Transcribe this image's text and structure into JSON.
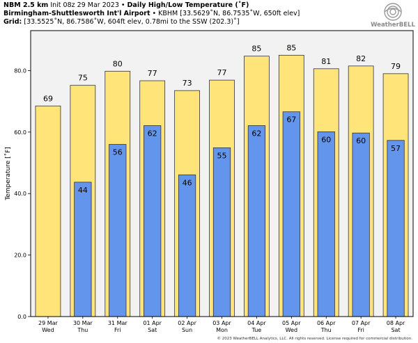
{
  "header": {
    "line1": {
      "model": "NBM 2.5 km",
      "init": "Init 08z 29 Mar 2023",
      "sep": "•",
      "title": "Daily High/Low Temperature (˚F)"
    },
    "line2": {
      "station": "Birmingham-Shuttlesworth Int'l Airport",
      "sep": "•",
      "detail": "KBHM [33.5629˚N, 86.7535˚W, 650ft elev]"
    },
    "line3": {
      "label": "Grid:",
      "detail": "[33.5525˚N, 86.7586˚W, 604ft elev, 0.78mi to the SSW (202.3)˚]"
    }
  },
  "logo": {
    "text": "WeatherBELL",
    "icon": "swirl-logo-icon"
  },
  "copyright": "© 2023 WeatherBELL Analytics, LLC. All rights reserved. License required for commercial distribution.",
  "chart_data": {
    "type": "bar",
    "ylabel": "Temperature [˚F]",
    "ylim": [
      0,
      93
    ],
    "yticks": [
      0,
      20,
      40,
      60,
      80
    ],
    "ytick_labels": [
      "0.0",
      "20.0",
      "40.0",
      "60.0",
      "80.0"
    ],
    "grid": false,
    "categories": [
      "29 Mar",
      "30 Mar",
      "31 Mar",
      "01 Apr",
      "02 Apr",
      "03 Apr",
      "04 Apr",
      "05 Apr",
      "06 Apr",
      "07 Apr",
      "08 Apr"
    ],
    "weekdays": [
      "Wed",
      "Thu",
      "Fri",
      "Sat",
      "Sun",
      "Mon",
      "Tue",
      "Wed",
      "Thu",
      "Fri",
      "Sat"
    ],
    "series": [
      {
        "values": [
          68.5,
          75.2,
          79.8,
          76.7,
          73.5,
          76.9,
          84.7,
          85.0,
          80.6,
          81.5,
          79.0
        ],
        "labels": [
          "69",
          "75",
          "80",
          "77",
          "73",
          "77",
          "85",
          "85",
          "81",
          "82",
          "79"
        ],
        "color": "#FFE47A"
      },
      {
        "values": [
          null,
          43.7,
          56.0,
          62.1,
          46.1,
          54.9,
          62.1,
          66.6,
          60.1,
          59.7,
          57.3
        ],
        "labels": [
          "",
          "44",
          "56",
          "62",
          "46",
          "55",
          "62",
          "67",
          "60",
          "60",
          "57"
        ],
        "color": "#6495ED"
      }
    ],
    "background": "#F2F2F2"
  }
}
